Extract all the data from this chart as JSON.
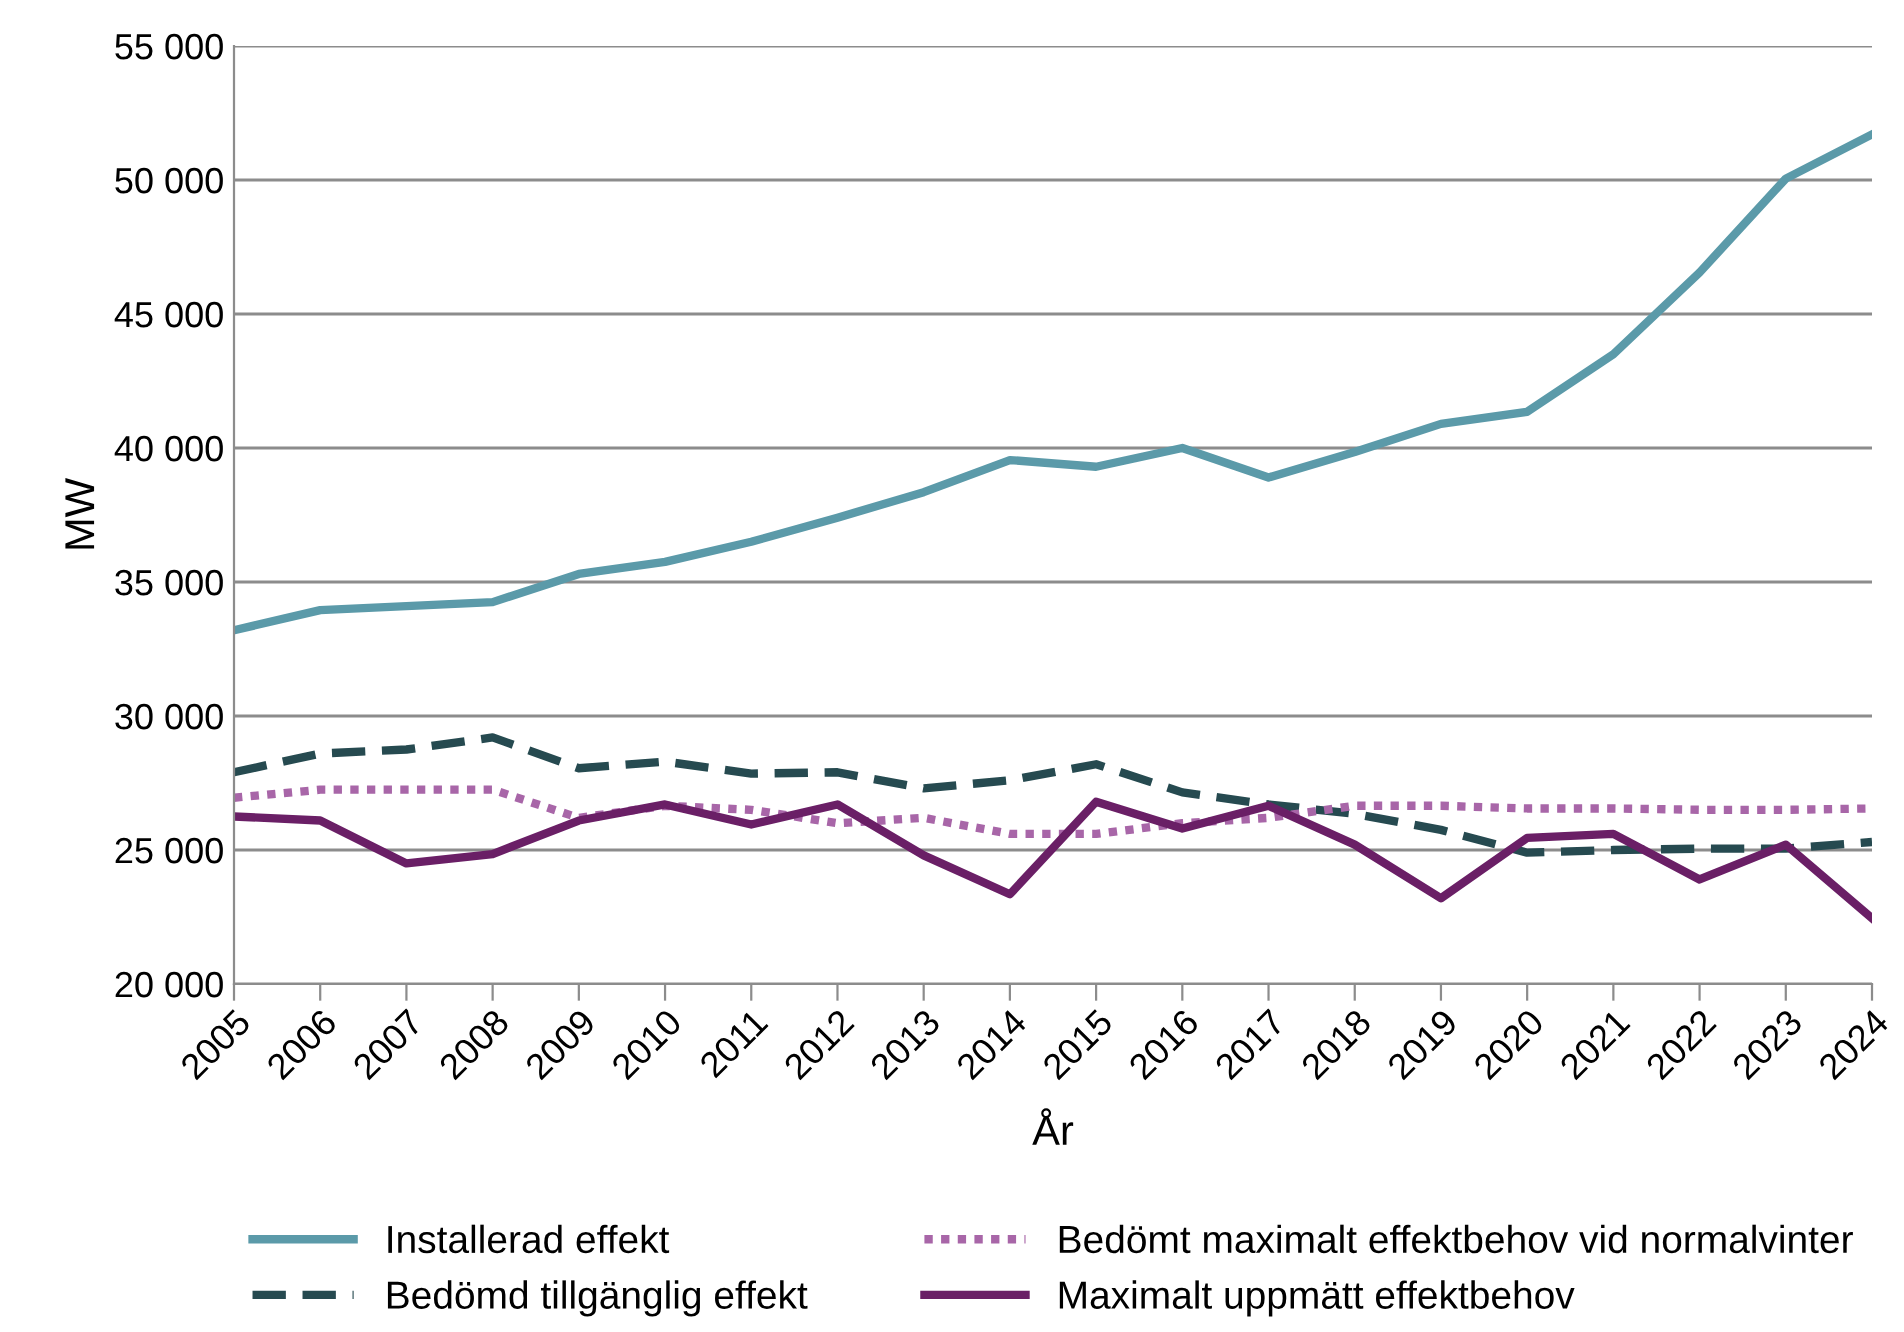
{
  "chart_data": {
    "type": "line",
    "xlabel": "År",
    "ylabel": "MW",
    "categories": [
      "2005",
      "2006",
      "2007",
      "2008",
      "2009",
      "2010",
      "2011",
      "2012",
      "2013",
      "2014",
      "2015",
      "2016",
      "2017",
      "2018",
      "2019",
      "2020",
      "2021",
      "2022",
      "2023",
      "2024"
    ],
    "series": [
      {
        "name": "Installerad effekt",
        "color": "#5b9aa9",
        "line_style": "solid",
        "values": [
          33200,
          33950,
          34100,
          34250,
          35300,
          35750,
          36500,
          37400,
          38350,
          39550,
          39300,
          40000,
          38900,
          39850,
          40900,
          41350,
          43500,
          46550,
          50050,
          51700
        ]
      },
      {
        "name": "Bedömd tillgänglig effekt",
        "color": "#264a50",
        "line_style": "dashed",
        "values": [
          27900,
          28600,
          28750,
          29200,
          28050,
          28300,
          27850,
          27900,
          27300,
          27600,
          28200,
          27150,
          26700,
          26350,
          25750,
          24900,
          25000,
          25050,
          25050,
          25300
        ]
      },
      {
        "name": "Bedömt maximalt effektbehov vid normalvinter",
        "color": "#a866a8",
        "line_style": "dotted",
        "values": [
          26950,
          27250,
          27250,
          27250,
          26200,
          26650,
          26500,
          26000,
          26200,
          25600,
          25600,
          26000,
          26200,
          26650,
          26650,
          26550,
          26550,
          26500,
          26500,
          26550
        ]
      },
      {
        "name": "Maximalt uppmätt effektbehov",
        "color": "#6a1f66",
        "line_style": "solid",
        "values": [
          26250,
          26100,
          24500,
          24850,
          26100,
          26700,
          25950,
          26700,
          24800,
          23350,
          26800,
          25800,
          26650,
          25200,
          23200,
          25450,
          25600,
          23900,
          25200,
          22450
        ]
      }
    ],
    "ylim": [
      20000,
      55000
    ],
    "yticks": [
      {
        "value": 20000,
        "label": "20 000"
      },
      {
        "value": 25000,
        "label": "25 000"
      },
      {
        "value": 30000,
        "label": "30 000"
      },
      {
        "value": 35000,
        "label": "35 000"
      },
      {
        "value": 40000,
        "label": "40 000"
      },
      {
        "value": 45000,
        "label": "45 000"
      },
      {
        "value": 50000,
        "label": "50 000"
      },
      {
        "value": 55000,
        "label": "55 000"
      }
    ],
    "grid": "y",
    "legend": "bottom",
    "marker": "none"
  }
}
